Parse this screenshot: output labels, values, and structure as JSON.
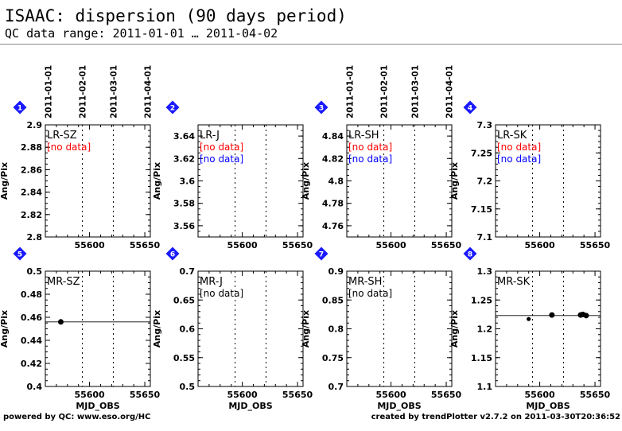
{
  "page": {
    "title": "ISAAC: dispersion (90 days period)",
    "subtitle": "QC data range: 2011-01-01 … 2011-04-02",
    "footer_left": "powered by QC: www.eso.org/HC",
    "footer_right": "created by trendPlotter v2.7.2 on 2011-03-30T20:36:52"
  },
  "colors": {
    "badge": "#1a1aff",
    "no_data_red": "#ff0000",
    "no_data_blue": "#0000ff",
    "no_data_black": "#000000"
  },
  "chart_data": [
    {
      "type": "scatter",
      "badge": "1",
      "label": "LR-SZ",
      "ylabel": "Ang/Pix",
      "xlabel": "",
      "xlim": [
        55560,
        55655
      ],
      "ylim": [
        2.8,
        2.9
      ],
      "yticks": [
        "2.8",
        "2.82",
        "2.84",
        "2.86",
        "2.88",
        "2.9"
      ],
      "xticks": [
        "55600",
        "55650"
      ],
      "date_ticks": [
        "2011-01-01",
        "2011-02-01",
        "2011-03-01",
        "2011-04-01"
      ],
      "notes": [
        {
          "text": "[no data]",
          "color": "red"
        }
      ],
      "points": [],
      "ref_line": null
    },
    {
      "type": "scatter",
      "badge": "2",
      "label": "LR-J",
      "ylabel": "Ang/Pix",
      "xlabel": "",
      "xlim": [
        55560,
        55655
      ],
      "ylim": [
        3.55,
        3.65
      ],
      "yticks": [
        "3.56",
        "3.58",
        "3.6",
        "3.62",
        "3.64"
      ],
      "xticks": [
        "55600",
        "55650"
      ],
      "date_ticks": [],
      "notes": [
        {
          "text": "[no data]",
          "color": "red"
        },
        {
          "text": "[no data]",
          "color": "blue"
        }
      ],
      "points": [],
      "ref_line": null
    },
    {
      "type": "scatter",
      "badge": "3",
      "label": "LR-SH",
      "ylabel": "Ang/Pix",
      "xlabel": "",
      "xlim": [
        55560,
        55655
      ],
      "ylim": [
        4.75,
        4.85
      ],
      "yticks": [
        "4.76",
        "4.78",
        "4.8",
        "4.82",
        "4.84"
      ],
      "xticks": [
        "55600",
        "55650"
      ],
      "date_ticks": [
        "2011-01-01",
        "2011-02-01",
        "2011-03-01",
        "2011-04-01"
      ],
      "notes": [
        {
          "text": "[no data]",
          "color": "red"
        },
        {
          "text": "[no data]",
          "color": "blue"
        }
      ],
      "points": [],
      "ref_line": null
    },
    {
      "type": "scatter",
      "badge": "4",
      "label": "LR-SK",
      "ylabel": "Ang/Pix",
      "xlabel": "",
      "xlim": [
        55560,
        55655
      ],
      "ylim": [
        7.1,
        7.3
      ],
      "yticks": [
        "7.1",
        "7.15",
        "7.2",
        "7.25",
        "7.3"
      ],
      "xticks": [
        "55600",
        "55650"
      ],
      "date_ticks": [],
      "notes": [
        {
          "text": "[no data]",
          "color": "red"
        },
        {
          "text": "[no data]",
          "color": "blue"
        }
      ],
      "points": [],
      "ref_line": null
    },
    {
      "type": "scatter",
      "badge": "5",
      "label": "MR-SZ",
      "ylabel": "Ang/Pix",
      "xlabel": "MJD_OBS",
      "xlim": [
        55560,
        55655
      ],
      "ylim": [
        0.4,
        0.5
      ],
      "yticks": [
        "0.4",
        "0.42",
        "0.44",
        "0.46",
        "0.48",
        "0.5"
      ],
      "xticks": [
        "55600",
        "55650"
      ],
      "date_ticks": [],
      "notes": [],
      "points": [
        {
          "x": 55574,
          "y": 0.456,
          "size": 3.5
        }
      ],
      "ref_line": 0.456
    },
    {
      "type": "scatter",
      "badge": "6",
      "label": "MR-J",
      "ylabel": "Ang/Pix",
      "xlabel": "MJD_OBS",
      "xlim": [
        55560,
        55655
      ],
      "ylim": [
        0.5,
        0.7
      ],
      "yticks": [
        "0.5",
        "0.55",
        "0.6",
        "0.65",
        "0.7"
      ],
      "xticks": [
        "55600",
        "55650"
      ],
      "date_ticks": [],
      "notes": [
        {
          "text": "[no data]",
          "color": "black"
        }
      ],
      "points": [],
      "ref_line": null
    },
    {
      "type": "scatter",
      "badge": "7",
      "label": "MR-SH",
      "ylabel": "Ang/Pix",
      "xlabel": "MJD_OBS",
      "xlim": [
        55560,
        55655
      ],
      "ylim": [
        0.7,
        0.9
      ],
      "yticks": [
        "0.7",
        "0.75",
        "0.8",
        "0.85",
        "0.9"
      ],
      "xticks": [
        "55600",
        "55650"
      ],
      "date_ticks": [],
      "notes": [
        {
          "text": "[no data]",
          "color": "black"
        }
      ],
      "points": [],
      "ref_line": null
    },
    {
      "type": "scatter",
      "badge": "8",
      "label": "MR-SK",
      "ylabel": "Ang/Pix",
      "xlabel": "MJD_OBS",
      "xlim": [
        55560,
        55655
      ],
      "ylim": [
        1.1,
        1.3
      ],
      "yticks": [
        "1.1",
        "1.15",
        "1.2",
        "1.25",
        "1.3"
      ],
      "xticks": [
        "55600",
        "55650"
      ],
      "date_ticks": [],
      "notes": [],
      "points": [
        {
          "x": 55590,
          "y": 1.217,
          "size": 2.6
        },
        {
          "x": 55611,
          "y": 1.224,
          "size": 3.5
        },
        {
          "x": 55637,
          "y": 1.224,
          "size": 3.5
        },
        {
          "x": 55639,
          "y": 1.225,
          "size": 3.5
        },
        {
          "x": 55642,
          "y": 1.223,
          "size": 3.5
        }
      ],
      "ref_line": 1.223
    }
  ]
}
